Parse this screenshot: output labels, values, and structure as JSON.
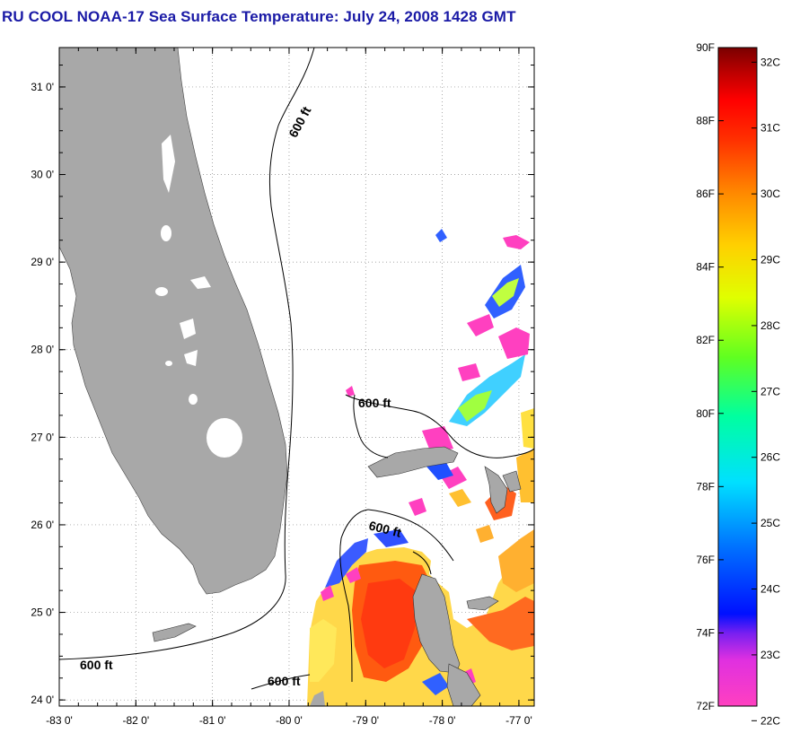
{
  "title": "RU COOL  NOAA-17  Sea Surface Temperature:  July 24, 2008 1428 GMT",
  "map": {
    "lat_labels": [
      "31 0'",
      "30 0'",
      "29 0'",
      "28 0'",
      "27 0'",
      "26 0'",
      "25 0'",
      "24 0'"
    ],
    "lon_labels": [
      "-83 0'",
      "-82 0'",
      "-81 0'",
      "-80 0'",
      "-79 0'",
      "-78 0'",
      "-77 0'"
    ],
    "lat_range": [
      23.93,
      31.45
    ],
    "lon_range": [
      -83.0,
      -76.8
    ],
    "contour_label": "600 ft",
    "colors": {
      "land": "#a8a8a8",
      "ocean": "#ffffff",
      "grid": "#888888"
    }
  },
  "colorbar": {
    "fahrenheit_labels": [
      "90F",
      "88F",
      "86F",
      "84F",
      "82F",
      "80F",
      "78F",
      "76F",
      "74F",
      "72F"
    ],
    "celsius_labels": [
      "32C",
      "31C",
      "30C",
      "29C",
      "28C",
      "27C",
      "26C",
      "25C",
      "24C",
      "23C",
      "22C"
    ],
    "colors_bottom_to_top": [
      "#ff40c0",
      "#a020f0",
      "#0000ff",
      "#00a0ff",
      "#00ffff",
      "#00ff80",
      "#80ff00",
      "#ffff00",
      "#ffc000",
      "#ff8000",
      "#ff2000",
      "#ff0000",
      "#c00000",
      "#800000"
    ]
  }
}
